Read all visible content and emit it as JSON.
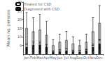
{
  "chart_data": {
    "type": "bar",
    "categories": [
      "Jan",
      "Feb",
      "Mar",
      "Apr",
      "May",
      "Jun",
      "Jul",
      "Aug",
      "Sep",
      "Oct",
      "Nov",
      "Dec"
    ],
    "series": [
      {
        "name": "Treated for CSD",
        "color": "#f0f0f0",
        "values": [
          15,
          13,
          14,
          11,
          5,
          7,
          8,
          6,
          5,
          7,
          13,
          18
        ],
        "errors": [
          9,
          8,
          9,
          8,
          3.5,
          4.5,
          5,
          4,
          3,
          4.5,
          8,
          10
        ]
      },
      {
        "name": "Diagnosed with CSD",
        "color": "#1a1a1a",
        "values": [
          4,
          5,
          5,
          4,
          1.2,
          1.5,
          2,
          1.5,
          1.2,
          2,
          4,
          6
        ],
        "errors": [
          1.5,
          2,
          2,
          1.5,
          0.7,
          0.8,
          1,
          0.8,
          0.7,
          0.8,
          1.8,
          2.5
        ]
      }
    ],
    "ylabel": "Mean no. persons",
    "ylim": [
      0,
      30
    ],
    "yticks": [
      5,
      10,
      15,
      20,
      25,
      30
    ],
    "grid": false,
    "legend": "upper left"
  }
}
